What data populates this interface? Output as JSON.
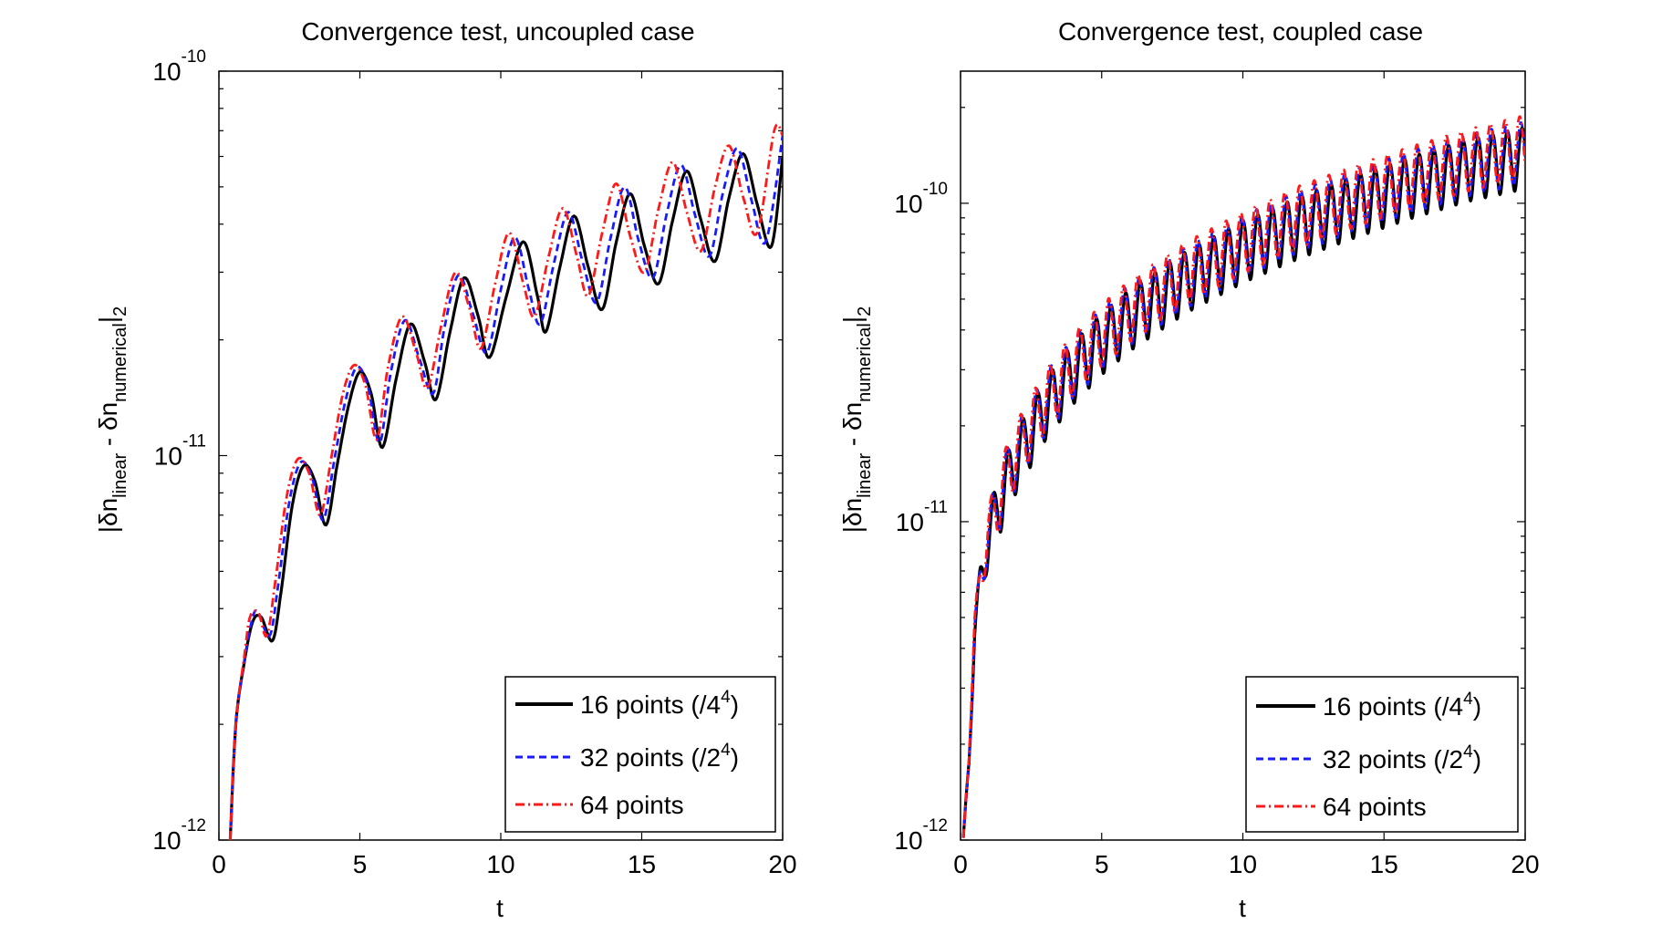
{
  "chart_data": [
    {
      "type": "line",
      "title": "Convergence test, uncoupled case",
      "xlabel": "t",
      "ylabel": "|δn_linear - δn_numerical|_2",
      "yscale": "log",
      "xlim": [
        0,
        20
      ],
      "ylim": [
        1e-12,
        1e-10
      ],
      "xticks": [
        0,
        5,
        10,
        15,
        20
      ],
      "yticks": [
        1e-12,
        1e-11,
        1e-10
      ],
      "legend_position": "bottom-right",
      "series": [
        {
          "name": "16 points (/4^4)",
          "color": "#000000",
          "style": "solid",
          "x": [
            0.4,
            0.6,
            0.9,
            1.2,
            1.5,
            1.9,
            2.2,
            2.6,
            3.0,
            3.4,
            3.8,
            4.2,
            4.6,
            5.0,
            5.4,
            5.8,
            6.3,
            6.8,
            7.3,
            7.7,
            8.2,
            8.7,
            9.2,
            9.6,
            10.2,
            10.8,
            11.3,
            11.6,
            12.1,
            12.6,
            13.1,
            13.6,
            14.1,
            14.6,
            15.1,
            15.6,
            16.1,
            16.6,
            17.1,
            17.6,
            18.1,
            18.6,
            19.1,
            19.6,
            20.0
          ],
          "y": [
            1e-12,
            2e-12,
            2.9e-12,
            3.7e-12,
            3.8e-12,
            3.3e-12,
            4.4e-12,
            7.4e-12,
            9.4e-12,
            8.6e-12,
            6.6e-12,
            9.5e-12,
            1.35e-11,
            1.65e-11,
            1.45e-11,
            1.05e-11,
            1.6e-11,
            2.2e-11,
            1.75e-11,
            1.4e-11,
            2.1e-11,
            2.9e-11,
            2.3e-11,
            1.8e-11,
            2.6e-11,
            3.6e-11,
            2.6e-11,
            2.1e-11,
            3.1e-11,
            4.2e-11,
            3.1e-11,
            2.4e-11,
            3.6e-11,
            4.8e-11,
            3.5e-11,
            2.8e-11,
            4.1e-11,
            5.5e-11,
            4.1e-11,
            3.2e-11,
            4.7e-11,
            6.1e-11,
            4.5e-11,
            3.5e-11,
            6e-11
          ]
        },
        {
          "name": "32 points (/2^4)",
          "color": "#1a1aff",
          "style": "dashed",
          "x": [
            0.4,
            0.6,
            0.9,
            1.2,
            1.4,
            1.8,
            2.1,
            2.5,
            2.9,
            3.3,
            3.7,
            4.1,
            4.5,
            4.9,
            5.3,
            5.7,
            6.1,
            6.6,
            7.1,
            7.6,
            8.0,
            8.5,
            9.0,
            9.5,
            10.0,
            10.5,
            11.0,
            11.4,
            11.9,
            12.4,
            12.9,
            13.4,
            13.9,
            14.4,
            14.9,
            15.4,
            15.9,
            16.4,
            16.9,
            17.4,
            17.9,
            18.4,
            18.9,
            19.4,
            20.0
          ],
          "y": [
            1e-12,
            2e-12,
            2.9e-12,
            3.8e-12,
            3.9e-12,
            3.4e-12,
            4.6e-12,
            7.6e-12,
            9.6e-12,
            8.8e-12,
            6.8e-12,
            9.8e-12,
            1.4e-11,
            1.7e-11,
            1.5e-11,
            1.08e-11,
            1.65e-11,
            2.25e-11,
            1.8e-11,
            1.45e-11,
            2.15e-11,
            2.95e-11,
            2.35e-11,
            1.85e-11,
            2.7e-11,
            3.7e-11,
            2.7e-11,
            2.2e-11,
            3.2e-11,
            4.3e-11,
            3.2e-11,
            2.5e-11,
            3.7e-11,
            5e-11,
            3.6e-11,
            2.9e-11,
            4.3e-11,
            5.7e-11,
            4.2e-11,
            3.3e-11,
            4.9e-11,
            6.3e-11,
            4.6e-11,
            3.6e-11,
            6.8e-11
          ]
        },
        {
          "name": "64 points",
          "color": "#ff1a1a",
          "style": "dashdot",
          "x": [
            0.4,
            0.6,
            0.9,
            1.1,
            1.4,
            1.7,
            2.0,
            2.4,
            2.8,
            3.2,
            3.6,
            4.0,
            4.4,
            4.8,
            5.2,
            5.6,
            6.0,
            6.5,
            7.0,
            7.4,
            7.9,
            8.4,
            8.9,
            9.3,
            9.8,
            10.3,
            10.8,
            11.2,
            11.7,
            12.2,
            12.7,
            13.1,
            13.6,
            14.1,
            14.6,
            15.1,
            15.6,
            16.1,
            16.6,
            17.1,
            17.6,
            18.1,
            18.6,
            19.1,
            19.7,
            20.0
          ],
          "y": [
            1e-12,
            2e-12,
            3e-12,
            3.8e-12,
            3.9e-12,
            3.4e-12,
            4.7e-12,
            7.8e-12,
            9.8e-12,
            9e-12,
            7e-12,
            1e-11,
            1.45e-11,
            1.72e-11,
            1.52e-11,
            1.1e-11,
            1.7e-11,
            2.3e-11,
            1.85e-11,
            1.5e-11,
            2.2e-11,
            3e-11,
            2.4e-11,
            1.9e-11,
            2.8e-11,
            3.8e-11,
            2.8e-11,
            2.3e-11,
            3.3e-11,
            4.4e-11,
            3.3e-11,
            2.6e-11,
            3.8e-11,
            5.1e-11,
            3.7e-11,
            3e-11,
            4.4e-11,
            5.8e-11,
            4.3e-11,
            3.4e-11,
            5e-11,
            6.4e-11,
            4.7e-11,
            3.8e-11,
            7e-11,
            6.8e-11
          ]
        }
      ],
      "legend_labels": [
        {
          "base": "16 points (/4",
          "sup": "4",
          "tail": ")"
        },
        {
          "base": "32 points (/2",
          "sup": "4",
          "tail": ")"
        },
        {
          "base": "64 points",
          "sup": "",
          "tail": ""
        }
      ]
    },
    {
      "type": "line",
      "title": "Convergence test, coupled case",
      "xlabel": "t",
      "ylabel": "|δn_linear - δn_numerical|_2",
      "yscale": "log",
      "xlim": [
        0,
        20
      ],
      "ylim": [
        1e-12,
        2.6e-10
      ],
      "xticks": [
        0,
        5,
        10,
        15,
        20
      ],
      "yticks": [
        1e-12,
        1e-11,
        1e-10
      ],
      "legend_position": "bottom-right",
      "oscillation": {
        "period": 0.52,
        "rel_amplitude": 0.22
      },
      "series": [
        {
          "name": "16 points (/4^4)",
          "color": "#000000",
          "style": "solid",
          "x": [
            0.1,
            0.3,
            0.5,
            0.7,
            1.0,
            1.5,
            2.0,
            3.0,
            4.0,
            5.0,
            6.0,
            8.0,
            10.0,
            12.0,
            14.0,
            16.0,
            18.0,
            20.0
          ],
          "y": [
            1e-12,
            1.8e-12,
            4.5e-12,
            6.5e-12,
            9e-12,
            1.25e-11,
            1.6e-11,
            2.3e-11,
            3e-11,
            3.7e-11,
            4.4e-11,
            5.8e-11,
            7.2e-11,
            8.6e-11,
            1e-10,
            1.15e-10,
            1.3e-10,
            1.42e-10
          ],
          "phase": 0.0
        },
        {
          "name": "32 points (/2^4)",
          "color": "#1a1aff",
          "style": "dashed",
          "x": [
            0.1,
            0.3,
            0.5,
            0.7,
            1.0,
            1.5,
            2.0,
            3.0,
            4.0,
            5.0,
            6.0,
            8.0,
            10.0,
            12.0,
            14.0,
            16.0,
            18.0,
            20.0
          ],
          "y": [
            1e-12,
            1.8e-12,
            4.6e-12,
            6.6e-12,
            9.2e-12,
            1.3e-11,
            1.65e-11,
            2.4e-11,
            3.1e-11,
            3.85e-11,
            4.6e-11,
            6e-11,
            7.5e-11,
            9e-11,
            1.05e-10,
            1.2e-10,
            1.35e-10,
            1.48e-10
          ],
          "phase": 0.08
        },
        {
          "name": "64 points",
          "color": "#ff1a1a",
          "style": "dashdot",
          "x": [
            0.1,
            0.3,
            0.5,
            0.7,
            1.0,
            1.5,
            2.0,
            3.0,
            4.0,
            5.0,
            6.0,
            8.0,
            10.0,
            12.0,
            14.0,
            16.0,
            18.0,
            20.0
          ],
          "y": [
            1e-12,
            1.9e-12,
            4.7e-12,
            6.8e-12,
            9.4e-12,
            1.33e-11,
            1.7e-11,
            2.45e-11,
            3.2e-11,
            3.95e-11,
            4.7e-11,
            6.2e-11,
            7.7e-11,
            9.3e-11,
            1.08e-10,
            1.24e-10,
            1.4e-10,
            1.55e-10
          ],
          "phase": 0.16
        }
      ],
      "legend_labels": [
        {
          "base": "16 points (/4",
          "sup": "4",
          "tail": ")"
        },
        {
          "base": "32 points (/2",
          "sup": "4",
          "tail": ")"
        },
        {
          "base": "64 points",
          "sup": "",
          "tail": ""
        }
      ]
    }
  ],
  "ylabel_parts": {
    "pre": "|δn",
    "sub1": "linear",
    "mid": " - δn",
    "sub2": "numerical",
    "post": "|",
    "sub3": "2"
  },
  "ytick_labels": {
    "base": "10",
    "exp": [
      "-12",
      "-11",
      "-10"
    ]
  }
}
